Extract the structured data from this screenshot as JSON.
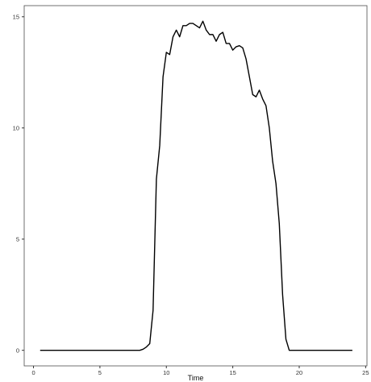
{
  "chart_data": {
    "type": "line",
    "title": "",
    "xlabel": "Time",
    "ylabel": "",
    "xlim": [
      -0.7,
      25.1
    ],
    "ylim": [
      -0.7,
      15.5
    ],
    "x_ticks": [
      0,
      5,
      10,
      15,
      20,
      25
    ],
    "x_tick_labels": [
      "0",
      "5",
      "10",
      "15",
      "20",
      "25"
    ],
    "y_ticks": [
      0,
      5,
      10,
      15
    ],
    "y_tick_labels": [
      "0",
      "5",
      "10",
      "15"
    ],
    "grid": false,
    "legend": "none",
    "line_color": "#000000",
    "series": [
      {
        "x": [
          0.5,
          1,
          2,
          3,
          4,
          5,
          6,
          7,
          8,
          8.25,
          8.5,
          8.75,
          9,
          9.25,
          9.5,
          9.75,
          10,
          10.25,
          10.5,
          10.75,
          11,
          11.25,
          11.5,
          11.75,
          12,
          12.25,
          12.5,
          12.75,
          13,
          13.25,
          13.5,
          13.75,
          14,
          14.25,
          14.5,
          14.75,
          15,
          15.25,
          15.5,
          15.75,
          16,
          16.25,
          16.5,
          16.75,
          17,
          17.25,
          17.5,
          17.75,
          18,
          18.25,
          18.5,
          18.75,
          19,
          19.25,
          19.5,
          20,
          21,
          22,
          23,
          24
        ],
        "y": [
          0,
          0,
          0,
          0,
          0,
          0,
          0,
          0,
          0,
          0.05,
          0.15,
          0.3,
          1.8,
          7.7,
          9.2,
          12.3,
          13.4,
          13.3,
          14.1,
          14.4,
          14.1,
          14.6,
          14.6,
          14.7,
          14.7,
          14.6,
          14.5,
          14.8,
          14.4,
          14.2,
          14.2,
          13.9,
          14.2,
          14.3,
          13.8,
          13.8,
          13.5,
          13.65,
          13.7,
          13.6,
          13.1,
          12.3,
          11.5,
          11.4,
          11.7,
          11.3,
          11.0,
          10.0,
          8.5,
          7.5,
          5.7,
          2.5,
          0.5,
          0,
          0,
          0,
          0,
          0,
          0,
          0
        ]
      }
    ]
  }
}
